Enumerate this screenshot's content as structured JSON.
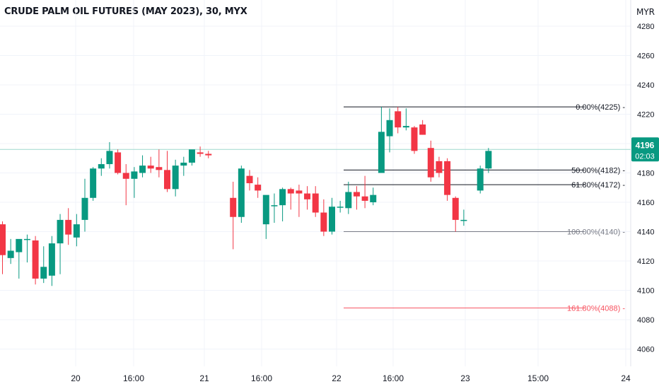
{
  "title": "CRUDE PALM OIL FUTURES (MAY 2023), 30, MYX",
  "currency": "MYR",
  "chart_data": {
    "type": "candlestick",
    "y_ticks": [
      4060,
      4080,
      4100,
      4120,
      4140,
      4160,
      4180,
      4200,
      4220,
      4240,
      4260,
      4280
    ],
    "x_ticks": [
      "20",
      "16:00",
      "21",
      "16:00",
      "22",
      "16:00",
      "23",
      "15:00",
      "24"
    ],
    "last_price": {
      "value": "4196",
      "countdown": "02:03",
      "price": 4196
    },
    "fibonacci": [
      {
        "label": "0.00%(4225)",
        "price": 4225,
        "color": "#131722"
      },
      {
        "label": "50.00%(4182)",
        "price": 4182,
        "color": "#131722"
      },
      {
        "label": "61.80%(4172)",
        "price": 4172,
        "color": "#131722"
      },
      {
        "label": "100.00%(4140)",
        "price": 4140,
        "color": "#787b86"
      },
      {
        "label": "161.80%(4088)",
        "price": 4088,
        "color": "#f7525f"
      }
    ],
    "colors": {
      "up": "#089981",
      "down": "#f23645",
      "grid": "#f0f3fa",
      "price_line": "#9fd9cd"
    },
    "candles": [
      [
        4145,
        4147,
        4111,
        4124
      ],
      [
        4122,
        4135,
        4118,
        4127
      ],
      [
        4126,
        4134,
        4108,
        4135
      ],
      [
        4135,
        4138,
        4119,
        4135
      ],
      [
        4134,
        4137,
        4104,
        4108
      ],
      [
        4108,
        4130,
        4105,
        4116
      ],
      [
        4110,
        4137,
        4103,
        4132
      ],
      [
        4132,
        4152,
        4111,
        4148
      ],
      [
        4148,
        4156,
        4131,
        4138
      ],
      [
        4136,
        4152,
        4130,
        4145
      ],
      [
        4148,
        4176,
        4140,
        4163
      ],
      [
        4163,
        4184,
        4161,
        4183
      ],
      [
        4183,
        4190,
        4178,
        4186
      ],
      [
        4186,
        4201,
        4183,
        4195
      ],
      [
        4194,
        4196,
        4179,
        4180
      ],
      [
        4180,
        4186,
        4158,
        4176
      ],
      [
        4176,
        4184,
        4163,
        4181
      ],
      [
        4180,
        4192,
        4177,
        4185
      ],
      [
        4185,
        4191,
        4180,
        4183
      ],
      [
        4184,
        4196,
        4177,
        4182
      ],
      [
        4182,
        4195,
        4167,
        4169
      ],
      [
        4169,
        4189,
        4164,
        4185
      ],
      [
        4185,
        4191,
        4178,
        4187
      ],
      [
        4187,
        4195,
        4185,
        4196
      ],
      [
        4194,
        4198,
        4191,
        4193
      ],
      [
        4193,
        4195,
        4190,
        4192
      ],
      null,
      null,
      [
        4163,
        4174,
        4128,
        4150
      ],
      [
        4150,
        4185,
        4146,
        4183
      ],
      [
        4178,
        4182,
        4168,
        4173
      ],
      [
        4172,
        4177,
        4163,
        4168
      ],
      [
        4145,
        4164,
        4135,
        4165
      ],
      [
        4158,
        4166,
        4146,
        4158
      ],
      [
        4158,
        4170,
        4147,
        4169
      ],
      [
        4169,
        4170,
        4155,
        4166
      ],
      [
        4168,
        4172,
        4150,
        4166
      ],
      [
        4166,
        4171,
        4155,
        4162
      ],
      [
        4166,
        4171,
        4150,
        4153
      ],
      [
        4153,
        4162,
        4137,
        4140
      ],
      [
        4140,
        4163,
        4138,
        4157
      ],
      [
        4157,
        4161,
        4153,
        4157
      ],
      [
        4156,
        4174,
        4152,
        4167
      ],
      [
        4167,
        4171,
        4155,
        4164
      ],
      [
        4164,
        4178,
        4156,
        4161
      ],
      [
        4160,
        4170,
        4158,
        4165
      ],
      [
        4180,
        4225,
        4180,
        4208
      ],
      [
        4205,
        4224,
        4194,
        4216
      ],
      [
        4222,
        4225,
        4207,
        4211
      ],
      [
        4211,
        4224,
        4209,
        4212
      ],
      [
        4211,
        4212,
        4193,
        4195
      ],
      [
        4213,
        4216,
        4206,
        4206
      ],
      [
        4197,
        4202,
        4174,
        4177
      ],
      [
        4188,
        4191,
        4177,
        4180
      ],
      [
        4188,
        4190,
        4161,
        4165
      ],
      [
        4163,
        4164,
        4140,
        4148
      ],
      [
        4148,
        4155,
        4144,
        4148
      ],
      null,
      [
        4168,
        4185,
        4166,
        4183
      ],
      [
        4183,
        4197,
        4180,
        4195
      ]
    ]
  }
}
